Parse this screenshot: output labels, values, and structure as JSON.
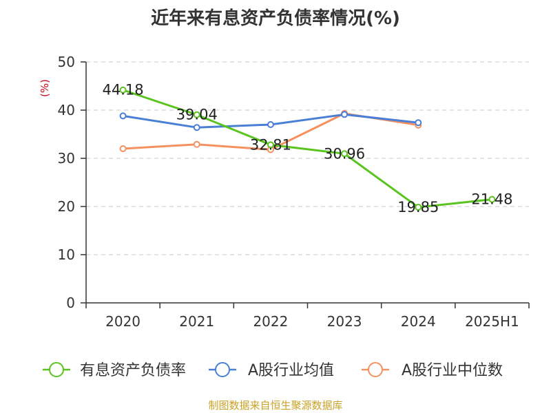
{
  "chart_data": {
    "type": "line",
    "title": "近年来有息资产负债率情况(%)",
    "ylabel": "(%)",
    "categories": [
      "2020",
      "2021",
      "2022",
      "2023",
      "2024",
      "2025H1"
    ],
    "ylim": [
      0,
      50
    ],
    "yticks": [
      0,
      10,
      20,
      30,
      40,
      50
    ],
    "grid": true,
    "legend_position": "bottom",
    "series": [
      {
        "name": "有息资产负债率",
        "color": "#5ac41e",
        "values": [
          44.18,
          39.04,
          32.81,
          30.96,
          19.85,
          21.48
        ],
        "labels": [
          "44.18",
          "39.04",
          "32.81",
          "30.96",
          "19.85",
          "21.48"
        ]
      },
      {
        "name": "A股行业均值",
        "color": "#4a7fd6",
        "values": [
          38.8,
          36.4,
          37.0,
          39.1,
          37.4,
          null
        ]
      },
      {
        "name": "A股行业中位数",
        "color": "#f59160",
        "values": [
          32.0,
          32.9,
          31.8,
          39.3,
          36.9,
          null
        ]
      }
    ]
  },
  "source": "制图数据来自恒生聚源数据库"
}
